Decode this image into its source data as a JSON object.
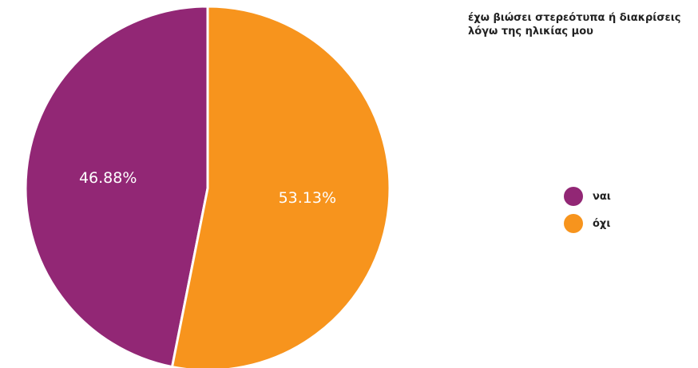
{
  "title": "έχω βιώσει στερεότυπα ή διακρίσεις λόγω της ηλικίας μου",
  "chart_data": {
    "type": "pie",
    "title": "έχω βιώσει στερεότυπα ή διακρίσεις λόγω της ηλικίας μου",
    "categories": [
      "ναι",
      "όχι"
    ],
    "values": [
      46.88,
      53.13
    ],
    "labels": [
      "46.88%",
      "53.13%"
    ],
    "colors": [
      "#922775",
      "#F7941D"
    ],
    "legend_position": "right"
  }
}
